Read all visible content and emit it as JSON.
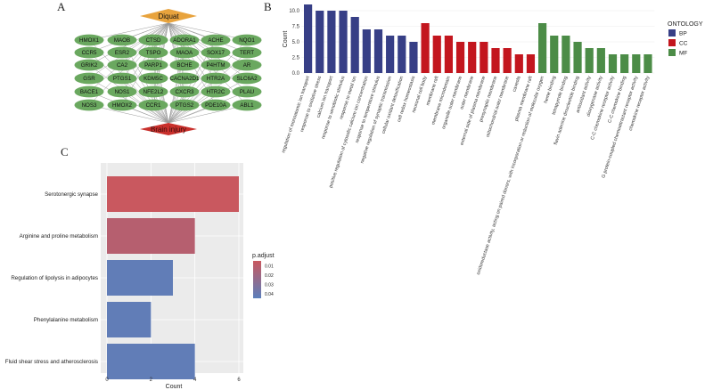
{
  "panels": {
    "a": "A",
    "b": "B",
    "c": "C"
  },
  "network": {
    "top_node": "Diquat",
    "bottom_node": "Brain injury",
    "genes": [
      [
        "HMOX1",
        "MAOB",
        "CTSD",
        "ADORA1",
        "ACHE",
        "NQO1"
      ],
      [
        "CCR5",
        "ESR2",
        "TSPO",
        "MAOA",
        "SOX17",
        "TERT"
      ],
      [
        "GRIK2",
        "CA2",
        "PARP1",
        "BCHE",
        "P4HTM",
        "AR"
      ],
      [
        "GSR",
        "PTGS1",
        "KDM5C",
        "CACNA2D1",
        "HTR2A",
        "SLC6A2"
      ],
      [
        "BACE1",
        "NOS1",
        "NFE2L2",
        "CXCR3",
        "HTR2C",
        "PLAU"
      ],
      [
        "NOS3",
        "HMOX2",
        "CCR1",
        "PTGS2",
        "PDE10A",
        "ABL1"
      ]
    ],
    "colors": {
      "gene": "#6aa85f",
      "top": "#e8a33d",
      "bottom": "#c9302c"
    }
  },
  "chart_data": [
    {
      "type": "bar",
      "title": "",
      "xlabel": "",
      "ylabel": "Count",
      "ylim": [
        0,
        11
      ],
      "yticks": [
        "0.0",
        "2.5",
        "5.0",
        "7.5",
        "10.0"
      ],
      "legend": {
        "title": "ONTOLOGY",
        "entries": [
          "BP",
          "CC",
          "MF"
        ],
        "placement": "right"
      },
      "group_colors": {
        "BP": "#373f86",
        "CC": "#c3161e",
        "MF": "#4c8c47"
      },
      "categories": [
        "regulation of monoatomic ion transport",
        "response to oxidative stress",
        "calcium ion transport",
        "response to xenobiotic stimulus",
        "response to metal ion",
        "positive regulation of cytosolic calcium ion concentration",
        "response to temperature stimulus",
        "negative regulation of synaptic transmission",
        "cellular oxidant detoxification",
        "cell redox homeostasis",
        "neuronal cell body",
        "membrane raft",
        "membrane microdomain",
        "organelle outer membrane",
        "outer membrane",
        "external side of plasma membrane",
        "presynaptic membrane",
        "mitochondrial outer membrane",
        "caveola",
        "plasma membrane raft",
        "oxidoreductase activity, acting on paired donors, with incorporation or reduction of molecular oxygen",
        "heme binding",
        "tetrapyrrole binding",
        "flavin adenine dinucleotide binding",
        "antioxidant activity",
        "dioxygenase activity",
        "C-C chemokine receptor activity",
        "C-C chemokine binding",
        "G protein-coupled chemoattractant receptor activity",
        "chemokine receptor activity"
      ],
      "values": [
        11,
        10,
        10,
        10,
        9,
        7,
        7,
        6,
        6,
        5,
        8,
        6,
        6,
        5,
        5,
        5,
        4,
        4,
        3,
        3,
        8,
        6,
        6,
        5,
        4,
        4,
        3,
        3,
        3,
        3
      ],
      "groups": [
        "BP",
        "BP",
        "BP",
        "BP",
        "BP",
        "BP",
        "BP",
        "BP",
        "BP",
        "BP",
        "CC",
        "CC",
        "CC",
        "CC",
        "CC",
        "CC",
        "CC",
        "CC",
        "CC",
        "CC",
        "MF",
        "MF",
        "MF",
        "MF",
        "MF",
        "MF",
        "MF",
        "MF",
        "MF",
        "MF"
      ]
    },
    {
      "type": "bar",
      "orientation": "horizontal",
      "title": "",
      "xlabel": "Count",
      "ylabel": "",
      "xlim": [
        0,
        6.2
      ],
      "xticks": [
        "0",
        "2",
        "4",
        "6"
      ],
      "categories": [
        "Serotonergic synapse",
        "Arginine and proline metabolism",
        "Regulation of lipolysis in adipocytes",
        "Phenylalanine metabolism",
        "Fluid shear stress and atherosclerosis"
      ],
      "values": [
        6,
        4,
        3,
        2,
        4
      ],
      "p_adjust": [
        0.005,
        0.012,
        0.043,
        0.043,
        0.043
      ],
      "legend": {
        "title": "p.adjust",
        "labels": [
          "0.01",
          "0.02",
          "0.03",
          "0.04"
        ],
        "color_low": "#c9585f",
        "color_high": "#5b7fbc",
        "range": [
          0.005,
          0.045
        ],
        "placement": "right"
      }
    }
  ]
}
